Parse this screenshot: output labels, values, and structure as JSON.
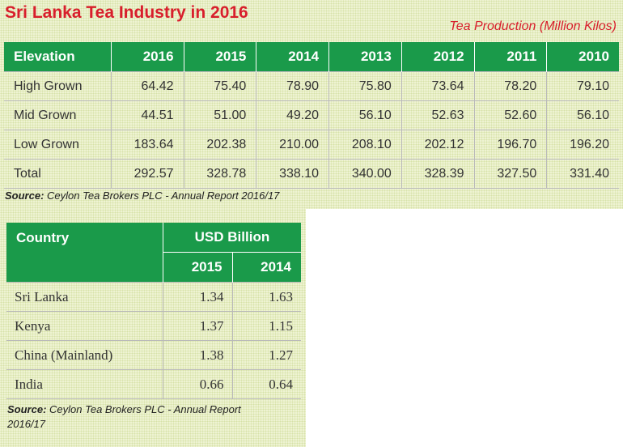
{
  "title": "Sri Lanka Tea Industry in 2016",
  "subtitle": "Tea Production (Million Kilos)",
  "production_table": {
    "headers": [
      "Elevation",
      "2016",
      "2015",
      "2014",
      "2013",
      "2012",
      "2011",
      "2010"
    ],
    "rows": [
      [
        "High Grown",
        "64.42",
        "75.40",
        "78.90",
        "75.80",
        "73.64",
        "78.20",
        "79.10"
      ],
      [
        "Mid Grown",
        "44.51",
        "51.00",
        "49.20",
        "56.10",
        "52.63",
        "52.60",
        "56.10"
      ],
      [
        "Low Grown",
        "183.64",
        "202.38",
        "210.00",
        "208.10",
        "202.12",
        "196.70",
        "196.20"
      ],
      [
        "Total",
        "292.57",
        "328.78",
        "338.10",
        "340.00",
        "328.39",
        "327.50",
        "331.40"
      ]
    ],
    "source_label": "Source:",
    "source_text": "Ceylon Tea Brokers PLC - Annual Report 2016/17"
  },
  "usd_table": {
    "header_country": "Country",
    "header_unit": "USD  Billion",
    "years": [
      "2015",
      "2014"
    ],
    "rows": [
      [
        "Sri Lanka",
        "1.34",
        "1.63"
      ],
      [
        "Kenya",
        "1.37",
        "1.15"
      ],
      [
        "China (Mainland)",
        "1.38",
        "1.27"
      ],
      [
        "India",
        "0.66",
        "0.64"
      ]
    ],
    "source_label": "Source:",
    "source_text": "Ceylon Tea Brokers PLC - Annual Report 2016/17"
  },
  "colors": {
    "header_green": "#1a9a4a",
    "title_red": "#d81e2c",
    "background": "#eef3d2"
  }
}
